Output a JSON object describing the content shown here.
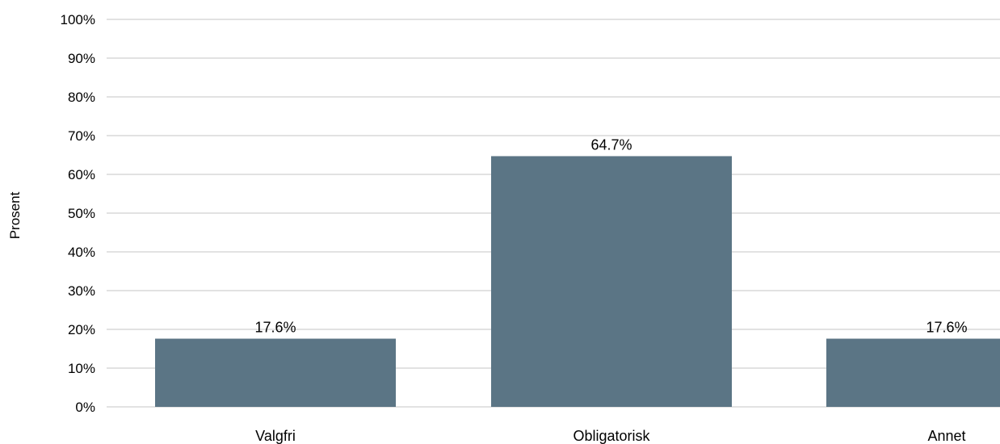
{
  "chart_data": {
    "type": "bar",
    "categories": [
      "Valgfri",
      "Obligatorisk",
      "Annet"
    ],
    "values": [
      17.6,
      64.7,
      17.6
    ],
    "data_labels": [
      "17.6%",
      "64.7%",
      "17.6%"
    ],
    "title": "",
    "xlabel": "",
    "ylabel": "Prosent",
    "ylim": [
      0,
      100
    ],
    "yticks": [
      "0%",
      "10%",
      "20%",
      "30%",
      "40%",
      "50%",
      "60%",
      "70%",
      "80%",
      "90%",
      "100%"
    ],
    "grid": true,
    "bar_color": "#5b7585",
    "grid_color": "#d9d9d9"
  }
}
